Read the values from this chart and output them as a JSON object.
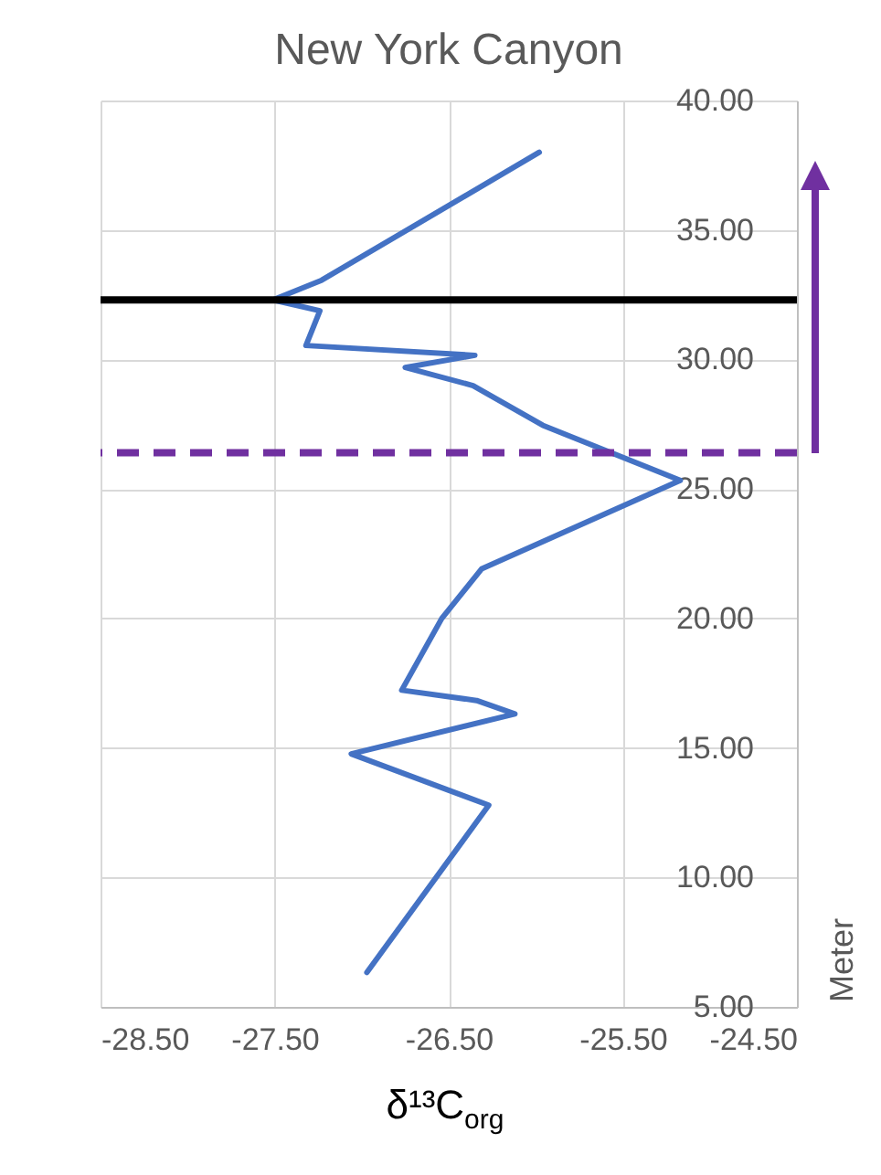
{
  "chart_data": {
    "type": "line",
    "title": "New York Canyon",
    "xlabel": "δ¹³C$_{org}$",
    "ylabel": "Meter",
    "xlim": [
      -28.5,
      -24.5
    ],
    "xticks": [
      {
        "value": -28.5,
        "label": "-28.50"
      },
      {
        "value": -27.5,
        "label": "-27.50"
      },
      {
        "value": -26.5,
        "label": "-26.50"
      },
      {
        "value": -25.5,
        "label": "-25.50"
      },
      {
        "value": -24.5,
        "label": "-24.50"
      }
    ],
    "ylim": [
      5,
      40
    ],
    "yticks": [
      {
        "value": 5,
        "label": "5.00"
      },
      {
        "value": 10,
        "label": "10.00"
      },
      {
        "value": 15,
        "label": "15.00"
      },
      {
        "value": 20,
        "label": "20.00"
      },
      {
        "value": 25,
        "label": "25.00"
      },
      {
        "value": 30,
        "label": "30.00"
      },
      {
        "value": 35,
        "label": "35.00"
      },
      {
        "value": 40,
        "label": "40.00"
      }
    ],
    "grid": true,
    "marker": "none",
    "line_style": "solid",
    "series": [
      {
        "color": "#4472c4",
        "x": [
          -25.98,
          -27.23,
          -27.51,
          -27.24,
          -27.32,
          -26.35,
          -26.75,
          -26.36,
          -25.96,
          -25.17,
          -26.31,
          -26.54,
          -26.77,
          -26.34,
          -26.12,
          -27.06,
          -26.27,
          -26.97
        ],
        "values": [
          38.0,
          33.06,
          32.3,
          31.88,
          30.54,
          30.16,
          29.69,
          28.99,
          27.46,
          25.33,
          21.92,
          20.0,
          17.23,
          16.83,
          16.31,
          14.77,
          12.79,
          6.33
        ]
      }
    ],
    "ref_lines": [
      {
        "axis": "y",
        "value": 32.3,
        "color": "#000000",
        "line_style": "solid"
      },
      {
        "axis": "y",
        "value": 26.4,
        "color": "#7030a0",
        "line_style": "dashed"
      }
    ]
  }
}
